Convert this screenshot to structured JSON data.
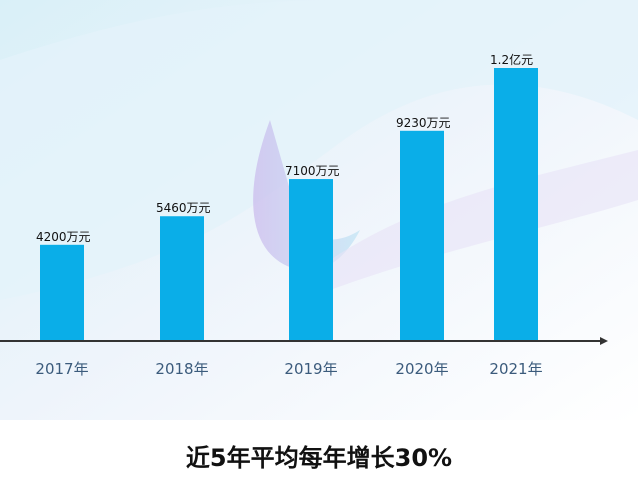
{
  "chart_data": {
    "type": "bar",
    "title": "近5年平均每年增长30%",
    "categories": [
      "2017年",
      "2018年",
      "2019年",
      "2020年",
      "2021年"
    ],
    "values": [
      4200,
      5460,
      7100,
      9230,
      12000
    ],
    "unit": "万元",
    "data_labels": [
      "4200万元",
      "5460万元",
      "7100万元",
      "9230万元",
      "1.2亿元"
    ],
    "ylim": [
      0,
      15000
    ],
    "grid": false,
    "legend": "none",
    "colors": {
      "bar": "#0aaee8",
      "axis": "#333333",
      "tick_label": "#3b5b7c",
      "title": "#111111"
    }
  }
}
